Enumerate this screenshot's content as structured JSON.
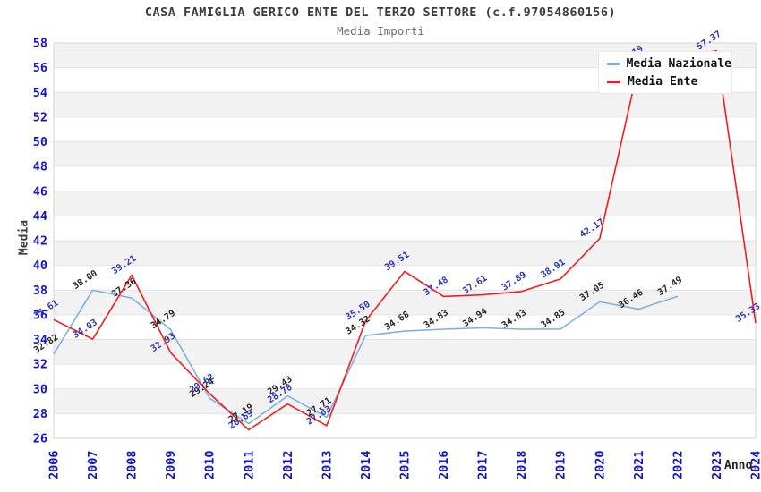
{
  "chart_data": {
    "type": "line",
    "title": "CASA FAMIGLIA GERICO ENTE DEL TERZO SETTORE (c.f.97054860156)",
    "subtitle": "Media Importi",
    "xlabel": "Anno",
    "ylabel": "Media",
    "categories": [
      "2006",
      "2007",
      "2008",
      "2009",
      "2010",
      "2011",
      "2012",
      "2013",
      "2014",
      "2015",
      "2016",
      "2017",
      "2018",
      "2019",
      "2020",
      "2021",
      "2022",
      "2023",
      "2024"
    ],
    "series": [
      {
        "name": "Media Nazionale",
        "color": "#7fb1e0",
        "label_color": "#262626",
        "values": [
          32.82,
          38.0,
          37.36,
          34.79,
          29.24,
          27.19,
          29.43,
          27.71,
          34.32,
          34.68,
          34.83,
          34.94,
          34.83,
          34.85,
          37.05,
          36.46,
          37.49,
          null,
          null
        ]
      },
      {
        "name": "Media Ente",
        "color": "#f31c1c",
        "label_color": "#2b35b5",
        "values": [
          35.61,
          34.03,
          39.21,
          32.93,
          29.62,
          26.69,
          28.78,
          27.03,
          35.5,
          39.51,
          37.48,
          37.61,
          37.89,
          38.91,
          42.17,
          56.19,
          null,
          57.37,
          35.33
        ]
      }
    ],
    "ylim": [
      26,
      58
    ],
    "ytick_step": 2,
    "grid": "horizontal-bands-alternating",
    "legend_position": "top-right",
    "style": {
      "band": "#f2f2f2",
      "gridline": "#e4e4e4",
      "border": "#d4d4d4",
      "axis_text": "#1414cc"
    }
  }
}
